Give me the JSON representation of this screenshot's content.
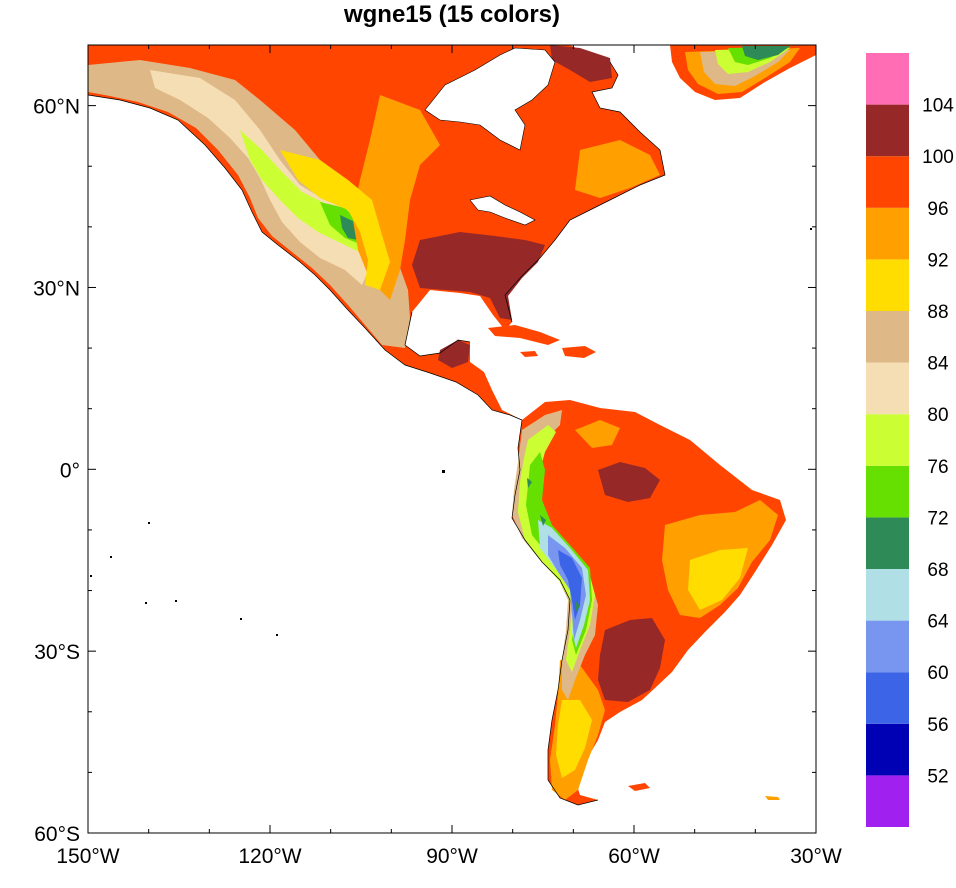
{
  "title": "wgne15 (15 colors)",
  "map": {
    "projection": "cylindrical-equidistant",
    "lon_range": [
      -150,
      -30
    ],
    "lat_range": [
      -60,
      70
    ],
    "coastlines": true,
    "ocean_color": "#FFFFFF",
    "lon_ticks": [
      {
        "value": -150,
        "label": "150°W"
      },
      {
        "value": -120,
        "label": "120°W"
      },
      {
        "value": -90,
        "label": "90°W"
      },
      {
        "value": -60,
        "label": "60°W"
      },
      {
        "value": -30,
        "label": "30°W"
      }
    ],
    "lat_ticks": [
      {
        "value": 60,
        "label": "60°N"
      },
      {
        "value": 30,
        "label": "30°N"
      },
      {
        "value": 0,
        "label": "0°"
      },
      {
        "value": -30,
        "label": "30°S"
      },
      {
        "value": -60,
        "label": "60°S"
      }
    ]
  },
  "colorbar": {
    "orientation": "vertical",
    "colors": [
      "#A020F0",
      "#0000B4",
      "#3C64E6",
      "#7896F0",
      "#B0E0E6",
      "#2E8B57",
      "#66E000",
      "#CCFF33",
      "#F5DEB3",
      "#DEB887",
      "#FFDD00",
      "#FFA000",
      "#FF4500",
      "#962828",
      "#FF6EB4"
    ],
    "labels": [
      "52",
      "56",
      "60",
      "64",
      "68",
      "72",
      "76",
      "80",
      "84",
      "88",
      "92",
      "96",
      "100",
      "104"
    ]
  }
}
